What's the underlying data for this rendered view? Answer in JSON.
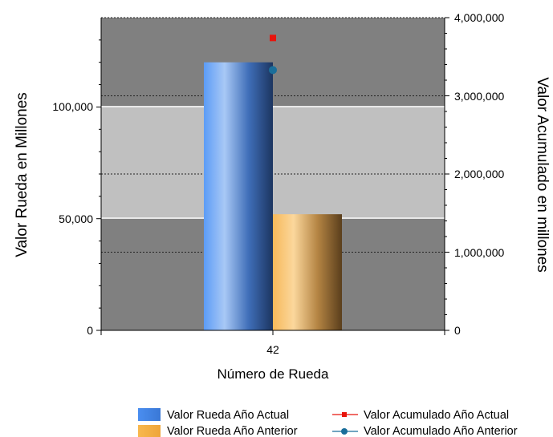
{
  "chart_data": {
    "type": "bar",
    "categories": [
      "42"
    ],
    "xlabel": "Número de Rueda",
    "ylabel_left": "Valor Rueda en Millones",
    "ylabel_right": "Valor Acumulado en millones",
    "y_left": {
      "min": 0,
      "max": 140000,
      "ticks": [
        0,
        50000,
        100000
      ],
      "tick_labels": [
        "0",
        "50,000",
        "100,000"
      ]
    },
    "y_right": {
      "min": 0,
      "max": 4000000,
      "ticks": [
        0,
        1000000,
        2000000,
        3000000,
        4000000
      ],
      "tick_labels": [
        "0",
        "1,000,000",
        "2,000,000",
        "3,000,000",
        "4,000,000"
      ]
    },
    "bars": [
      {
        "name": "Valor Rueda Año Actual",
        "values": [
          120000
        ],
        "color": "#4a8ef0",
        "axis": "left"
      },
      {
        "name": "Valor Rueda Año Anterior",
        "values": [
          52000
        ],
        "color": "#f5b24a",
        "axis": "left"
      }
    ],
    "lines": [
      {
        "name": "Valor Acumulado Año Actual",
        "values": [
          3740000
        ],
        "color": "#e8140c",
        "marker": "square",
        "axis": "right"
      },
      {
        "name": "Valor Acumulado Año Anterior",
        "values": [
          3330000
        ],
        "color": "#1a6e9a",
        "marker": "circle",
        "axis": "right"
      }
    ],
    "plot_background": "#808080",
    "band_color": "#c0c0c0",
    "grid": true,
    "legend_position": "bottom"
  }
}
